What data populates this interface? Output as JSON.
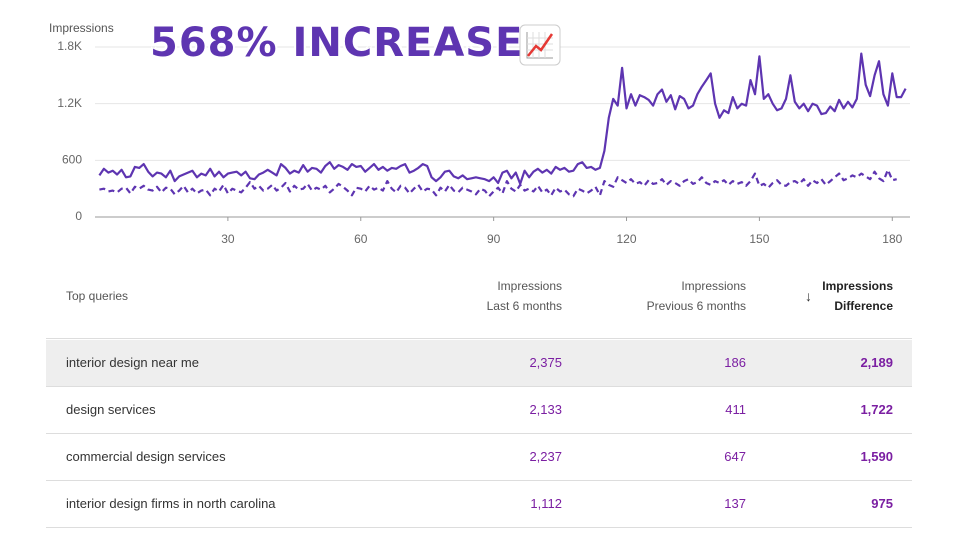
{
  "headline": "568% INCREASE!",
  "chart_data": {
    "type": "line",
    "ylabel": "Impressions",
    "x": [
      1,
      2,
      3,
      4,
      5,
      6,
      7,
      8,
      9,
      10,
      11,
      12,
      13,
      14,
      15,
      16,
      17,
      18,
      19,
      20,
      21,
      22,
      23,
      24,
      25,
      26,
      27,
      28,
      29,
      30,
      31,
      32,
      33,
      34,
      35,
      36,
      37,
      38,
      39,
      40,
      41,
      42,
      43,
      44,
      45,
      46,
      47,
      48,
      49,
      50,
      51,
      52,
      53,
      54,
      55,
      56,
      57,
      58,
      59,
      60,
      61,
      62,
      63,
      64,
      65,
      66,
      67,
      68,
      69,
      70,
      71,
      72,
      73,
      74,
      75,
      76,
      77,
      78,
      79,
      80,
      81,
      82,
      83,
      84,
      85,
      86,
      87,
      88,
      89,
      90,
      91,
      92,
      93,
      94,
      95,
      96,
      97,
      98,
      99,
      100,
      101,
      102,
      103,
      104,
      105,
      106,
      107,
      108,
      109,
      110,
      111,
      112,
      113,
      114,
      115,
      116,
      117,
      118,
      119,
      120,
      121,
      122,
      123,
      124,
      125,
      126,
      127,
      128,
      129,
      130,
      131,
      132,
      133,
      134,
      135,
      136,
      137,
      138,
      139,
      140,
      141,
      142,
      143,
      144,
      145,
      146,
      147,
      148,
      149,
      150,
      151,
      152,
      153,
      154,
      155,
      156,
      157,
      158,
      159,
      160,
      161,
      162,
      163,
      164,
      165,
      166,
      167,
      168,
      169,
      170,
      171,
      172,
      173,
      174,
      175,
      176,
      177,
      178,
      179,
      180,
      181,
      182,
      183
    ],
    "series": [
      {
        "color": "#5e35b1",
        "style": "solid",
        "values": [
          440,
          510,
          470,
          490,
          450,
          500,
          420,
          430,
          530,
          520,
          560,
          480,
          430,
          470,
          460,
          420,
          490,
          380,
          430,
          450,
          470,
          490,
          420,
          460,
          440,
          510,
          430,
          480,
          420,
          460,
          470,
          480,
          440,
          480,
          410,
          400,
          450,
          470,
          500,
          470,
          440,
          560,
          520,
          460,
          490,
          470,
          550,
          480,
          520,
          510,
          470,
          540,
          580,
          510,
          550,
          530,
          500,
          560,
          530,
          540,
          480,
          520,
          560,
          500,
          530,
          490,
          520,
          510,
          540,
          560,
          470,
          490,
          520,
          560,
          540,
          420,
          380,
          420,
          480,
          490,
          430,
          410,
          440,
          400,
          410,
          420,
          410,
          400,
          380,
          420,
          360,
          470,
          490,
          410,
          470,
          350,
          490,
          420,
          480,
          510,
          470,
          500,
          460,
          530,
          500,
          520,
          480,
          490,
          560,
          580,
          520,
          530,
          500,
          520,
          700,
          1050,
          1250,
          1180,
          1580,
          1150,
          1300,
          1180,
          1290,
          1270,
          1240,
          1180,
          1300,
          1350,
          1220,
          1290,
          1140,
          1280,
          1250,
          1150,
          1180,
          1300,
          1380,
          1450,
          1520,
          1200,
          1050,
          1130,
          1100,
          1270,
          1150,
          1200,
          1180,
          1450,
          1300,
          1700,
          1250,
          1300,
          1200,
          1130,
          1150,
          1250,
          1500,
          1220,
          1150,
          1200,
          1120,
          1200,
          1180,
          1090,
          1100,
          1170,
          1120,
          1240,
          1150,
          1220,
          1160,
          1250,
          1730,
          1400,
          1280,
          1500,
          1650,
          1300,
          1180,
          1520,
          1270,
          1270,
          1360
        ]
      },
      {
        "color": "#5e35b1",
        "style": "dashed",
        "values": [
          290,
          300,
          270,
          280,
          260,
          300,
          310,
          250,
          320,
          300,
          330,
          290,
          280,
          320,
          260,
          310,
          300,
          240,
          280,
          330,
          260,
          300,
          250,
          280,
          290,
          230,
          300,
          270,
          340,
          250,
          300,
          280,
          260,
          310,
          370,
          300,
          330,
          280,
          300,
          340,
          280,
          310,
          360,
          270,
          330,
          290,
          300,
          350,
          280,
          310,
          290,
          330,
          260,
          300,
          350,
          320,
          280,
          230,
          310,
          300,
          270,
          330,
          290,
          310,
          280,
          380,
          300,
          260,
          330,
          310,
          250,
          300,
          340,
          270,
          300,
          290,
          230,
          310,
          270,
          340,
          280,
          260,
          310,
          290,
          270,
          240,
          300,
          280,
          220,
          270,
          310,
          250,
          380,
          300,
          270,
          340,
          280,
          300,
          270,
          330,
          260,
          290,
          230,
          310,
          270,
          290,
          240,
          220,
          300,
          280,
          250,
          280,
          320,
          230,
          380,
          340,
          320,
          420,
          390,
          360,
          400,
          350,
          370,
          330,
          390,
          350,
          360,
          400,
          340,
          380,
          360,
          330,
          380,
          400,
          350,
          370,
          420,
          360,
          340,
          380,
          360,
          390,
          340,
          380,
          350,
          370,
          330,
          380,
          460,
          330,
          350,
          310,
          360,
          390,
          340,
          330,
          370,
          380,
          350,
          400,
          330,
          390,
          360,
          400,
          340,
          380,
          420,
          460,
          390,
          410,
          440,
          420,
          460,
          430,
          400,
          480,
          410,
          380,
          500,
          390,
          400,
          null,
          null
        ]
      }
    ],
    "xlim": [
      0,
      184
    ],
    "xticks": [
      30,
      60,
      90,
      120,
      150,
      180
    ],
    "ylim": [
      0,
      1800
    ],
    "yticks": [
      0,
      600,
      {
        "value": 1200,
        "label": "1.2K"
      },
      {
        "value": 1800,
        "label": "1.8K"
      }
    ],
    "grid": true
  },
  "table": {
    "columns": [
      [
        "Top queries"
      ],
      [
        "Impressions",
        "Last 6 months"
      ],
      [
        "Impressions",
        "Previous 6 months"
      ],
      [
        "Impressions",
        "Difference"
      ]
    ],
    "rows": [
      [
        "interior design near me",
        "2,375",
        "186",
        "2,189"
      ],
      [
        "design services",
        "2,133",
        "411",
        "1,722"
      ],
      [
        "commercial design services",
        "2,237",
        "647",
        "1,590"
      ],
      [
        "interior design firms in north carolina",
        "1,112",
        "137",
        "975"
      ]
    ]
  }
}
